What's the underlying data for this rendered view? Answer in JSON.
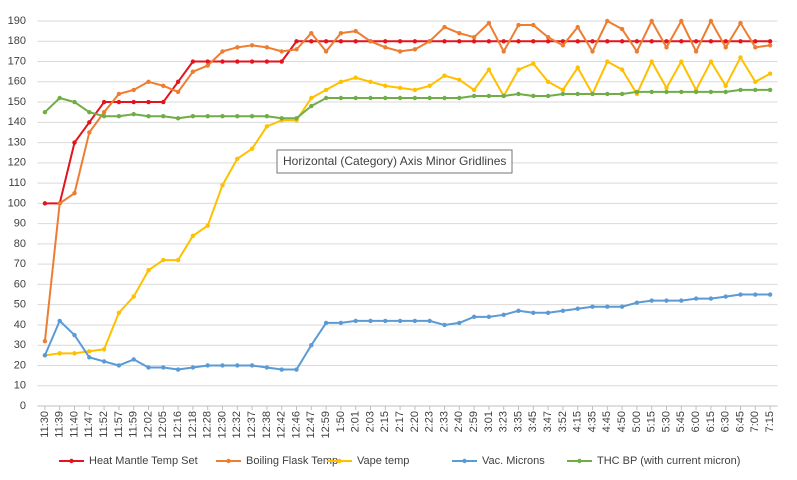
{
  "chart_data": {
    "type": "line",
    "categories": [
      "11:30",
      "11:39",
      "11:40",
      "11:47",
      "11:52",
      "11:57",
      "11:59",
      "12:02",
      "12:05",
      "12:16",
      "12:18",
      "12:28",
      "12:30",
      "12:32",
      "12:37",
      "12:38",
      "12:42",
      "12:46",
      "12:47",
      "12:59",
      "1:50",
      "2:01",
      "2:03",
      "2:15",
      "2:17",
      "2:20",
      "2:23",
      "2:33",
      "2:40",
      "2:59",
      "3:01",
      "3:23",
      "3:35",
      "3:45",
      "3:47",
      "3:52",
      "4:15",
      "4:35",
      "4:45",
      "4:50",
      "5:00",
      "5:15",
      "5:30",
      "5:45",
      "6:00",
      "6:15",
      "6:30",
      "6:45",
      "7:00",
      "7:15"
    ],
    "series": [
      {
        "name": "Heat Mantle Temp Set",
        "color": "#e3141c",
        "values": [
          100,
          100,
          130,
          140,
          150,
          150,
          150,
          150,
          150,
          160,
          170,
          170,
          170,
          170,
          170,
          170,
          170,
          180,
          180,
          180,
          180,
          180,
          180,
          180,
          180,
          180,
          180,
          180,
          180,
          180,
          180,
          180,
          180,
          180,
          180,
          180,
          180,
          180,
          180,
          180,
          180,
          180,
          180,
          180,
          180,
          180,
          180,
          180,
          180,
          180
        ]
      },
      {
        "name": "Boiling  Flask Temp",
        "color": "#ed7d31",
        "values": [
          32,
          100,
          105,
          135,
          145,
          154,
          156,
          160,
          158,
          155,
          165,
          168,
          175,
          177,
          178,
          177,
          175,
          176,
          184,
          175,
          184,
          185,
          180,
          177,
          175,
          176,
          180,
          187,
          184,
          182,
          189,
          175,
          188,
          188,
          182,
          178,
          187,
          175,
          190,
          186,
          175,
          190,
          177,
          190,
          175,
          190,
          177,
          189,
          177,
          178
        ]
      },
      {
        "name": "Vape temp",
        "color": "#ffc000",
        "values": [
          25,
          26,
          26,
          27,
          28,
          46,
          54,
          67,
          72,
          72,
          84,
          89,
          109,
          122,
          127,
          138,
          141,
          141,
          152,
          156,
          160,
          162,
          160,
          158,
          157,
          156,
          158,
          163,
          161,
          156,
          166,
          153,
          166,
          169,
          160,
          156,
          167,
          154,
          170,
          166,
          154,
          170,
          157,
          170,
          156,
          170,
          158,
          172,
          160,
          164
        ]
      },
      {
        "name": "Vac. Microns",
        "color": "#5b9bd5",
        "values": [
          25,
          42,
          35,
          24,
          22,
          20,
          23,
          19,
          19,
          18,
          19,
          20,
          20,
          20,
          20,
          19,
          18,
          18,
          30,
          41,
          41,
          42,
          42,
          42,
          42,
          42,
          42,
          40,
          41,
          44,
          44,
          45,
          47,
          46,
          46,
          47,
          48,
          49,
          49,
          49,
          51,
          52,
          52,
          52,
          53,
          53,
          54,
          55,
          55,
          55
        ]
      },
      {
        "name": "THC BP (with current micron)",
        "color": "#70ad47",
        "values": [
          145,
          152,
          150,
          145,
          143,
          143,
          144,
          143,
          143,
          142,
          143,
          143,
          143,
          143,
          143,
          143,
          142,
          142,
          148,
          152,
          152,
          152,
          152,
          152,
          152,
          152,
          152,
          152,
          152,
          153,
          153,
          153,
          154,
          153,
          153,
          154,
          154,
          154,
          154,
          154,
          155,
          155,
          155,
          155,
          155,
          155,
          155,
          156,
          156,
          156
        ]
      }
    ],
    "ylim": [
      0,
      190
    ],
    "yticks": [
      0,
      10,
      20,
      30,
      40,
      50,
      60,
      70,
      80,
      90,
      100,
      110,
      120,
      130,
      140,
      150,
      160,
      170,
      180,
      190
    ],
    "grid": true,
    "legend": "bottom",
    "annotation": "Horizontal (Category) Axis Minor Gridlines"
  }
}
